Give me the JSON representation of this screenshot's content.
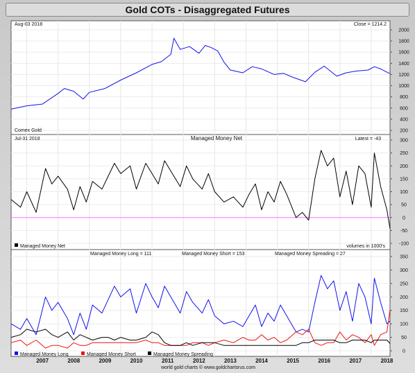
{
  "title": "Gold COTs - Disaggregated Futures",
  "footer": "world gold charts © www.goldchartsrus.com",
  "colors": {
    "price": "#1111ee",
    "net": "#000000",
    "long": "#1111ee",
    "short": "#ee1111",
    "spreading": "#000000",
    "zero_line": "#ff77ff"
  },
  "chart_data": [
    {
      "type": "line",
      "panel": "price",
      "date_label": "Aug-03  2018",
      "readout": "Close = 1214.2",
      "bottom_left_label": "Comex Gold",
      "ylim": [
        200,
        2000
      ],
      "yticks": [
        200,
        400,
        600,
        800,
        1000,
        1200,
        1400,
        1600,
        1800,
        2000
      ],
      "x": [
        2006.5,
        2007.0,
        2007.5,
        2008.0,
        2008.2,
        2008.5,
        2008.8,
        2009.0,
        2009.5,
        2010.0,
        2010.5,
        2011.0,
        2011.3,
        2011.6,
        2011.7,
        2011.9,
        2012.2,
        2012.5,
        2012.7,
        2012.9,
        2013.1,
        2013.3,
        2013.5,
        2013.9,
        2014.2,
        2014.5,
        2014.9,
        2015.2,
        2015.5,
        2015.9,
        2016.2,
        2016.5,
        2016.9,
        2017.2,
        2017.5,
        2017.9,
        2018.1,
        2018.3,
        2018.6
      ],
      "y": [
        580,
        640,
        670,
        860,
        950,
        900,
        760,
        880,
        950,
        1100,
        1230,
        1380,
        1430,
        1560,
        1850,
        1650,
        1700,
        1580,
        1720,
        1680,
        1620,
        1420,
        1280,
        1230,
        1340,
        1300,
        1200,
        1220,
        1150,
        1070,
        1240,
        1350,
        1170,
        1230,
        1260,
        1280,
        1340,
        1300,
        1214
      ]
    },
    {
      "type": "line",
      "panel": "managed-money-net",
      "title": "Managed Money Net",
      "date_label": "Jul-31  2018",
      "readout": "Latest = -43",
      "legend": "Managed Money Net",
      "units_note": "volumes in 1000's",
      "ylim": [
        -100,
        300
      ],
      "yticks": [
        -100,
        -50,
        0,
        50,
        100,
        150,
        200,
        250,
        300
      ],
      "x": [
        2006.5,
        2006.8,
        2007.0,
        2007.3,
        2007.6,
        2007.8,
        2008.0,
        2008.3,
        2008.5,
        2008.7,
        2008.9,
        2009.1,
        2009.4,
        2009.6,
        2009.8,
        2010.0,
        2010.3,
        2010.5,
        2010.8,
        2011.0,
        2011.2,
        2011.4,
        2011.6,
        2011.9,
        2012.1,
        2012.3,
        2012.6,
        2012.8,
        2013.0,
        2013.3,
        2013.6,
        2013.9,
        2014.1,
        2014.3,
        2014.5,
        2014.7,
        2014.9,
        2015.1,
        2015.3,
        2015.6,
        2015.8,
        2016.0,
        2016.2,
        2016.4,
        2016.6,
        2016.8,
        2017.0,
        2017.2,
        2017.4,
        2017.6,
        2017.8,
        2018.0,
        2018.1,
        2018.3,
        2018.5,
        2018.6
      ],
      "y": [
        70,
        40,
        100,
        20,
        190,
        130,
        160,
        110,
        30,
        120,
        60,
        140,
        110,
        160,
        210,
        170,
        200,
        110,
        210,
        170,
        130,
        220,
        180,
        120,
        200,
        150,
        110,
        170,
        100,
        60,
        80,
        40,
        90,
        130,
        30,
        100,
        60,
        140,
        90,
        0,
        20,
        -10,
        150,
        260,
        200,
        230,
        80,
        180,
        50,
        200,
        170,
        40,
        250,
        120,
        30,
        -43
      ]
    },
    {
      "type": "line",
      "panel": "managed-money-positions",
      "header_labels": [
        "Managed Money Long = 111",
        "Managed Money Short = 153",
        "Managed Money Spreading = 27"
      ],
      "ylim": [
        0,
        350
      ],
      "yticks": [
        0,
        50,
        100,
        150,
        200,
        250,
        300,
        350
      ],
      "xticks": [
        2007,
        2008,
        2009,
        2010,
        2011,
        2012,
        2013,
        2014,
        2015,
        2016,
        2017,
        2018
      ],
      "x": [
        2006.5,
        2006.8,
        2007.0,
        2007.3,
        2007.6,
        2007.8,
        2008.0,
        2008.3,
        2008.5,
        2008.7,
        2008.9,
        2009.1,
        2009.4,
        2009.6,
        2009.8,
        2010.0,
        2010.3,
        2010.5,
        2010.8,
        2011.0,
        2011.2,
        2011.4,
        2011.6,
        2011.9,
        2012.1,
        2012.3,
        2012.6,
        2012.8,
        2013.0,
        2013.3,
        2013.6,
        2013.9,
        2014.1,
        2014.3,
        2014.5,
        2014.7,
        2014.9,
        2015.1,
        2015.3,
        2015.6,
        2015.8,
        2016.0,
        2016.2,
        2016.4,
        2016.6,
        2016.8,
        2017.0,
        2017.2,
        2017.4,
        2017.6,
        2017.8,
        2018.0,
        2018.1,
        2018.3,
        2018.5,
        2018.6
      ],
      "series": [
        {
          "name": "Managed Money Long",
          "y": [
            100,
            80,
            120,
            60,
            200,
            150,
            180,
            120,
            60,
            140,
            80,
            170,
            140,
            190,
            240,
            200,
            230,
            140,
            250,
            200,
            160,
            240,
            200,
            140,
            220,
            180,
            140,
            190,
            130,
            100,
            110,
            90,
            130,
            170,
            90,
            140,
            110,
            170,
            130,
            70,
            80,
            70,
            180,
            280,
            230,
            260,
            150,
            220,
            110,
            250,
            200,
            100,
            270,
            180,
            100,
            111
          ]
        },
        {
          "name": "Managed Money Short",
          "y": [
            30,
            40,
            20,
            40,
            10,
            20,
            20,
            10,
            30,
            20,
            20,
            30,
            30,
            30,
            30,
            30,
            30,
            30,
            40,
            30,
            30,
            20,
            20,
            20,
            20,
            30,
            30,
            20,
            30,
            40,
            30,
            50,
            40,
            40,
            60,
            40,
            50,
            30,
            40,
            70,
            60,
            80,
            30,
            20,
            30,
            30,
            70,
            40,
            60,
            50,
            30,
            60,
            20,
            60,
            70,
            153
          ]
        },
        {
          "name": "Managed Money Spreading",
          "y": [
            50,
            60,
            80,
            70,
            80,
            60,
            50,
            70,
            40,
            60,
            50,
            40,
            50,
            50,
            40,
            50,
            40,
            40,
            50,
            70,
            60,
            30,
            20,
            20,
            30,
            20,
            30,
            30,
            30,
            20,
            20,
            20,
            20,
            20,
            20,
            20,
            20,
            20,
            20,
            20,
            30,
            30,
            40,
            40,
            40,
            40,
            30,
            30,
            40,
            40,
            40,
            30,
            40,
            40,
            40,
            27
          ]
        }
      ]
    }
  ]
}
